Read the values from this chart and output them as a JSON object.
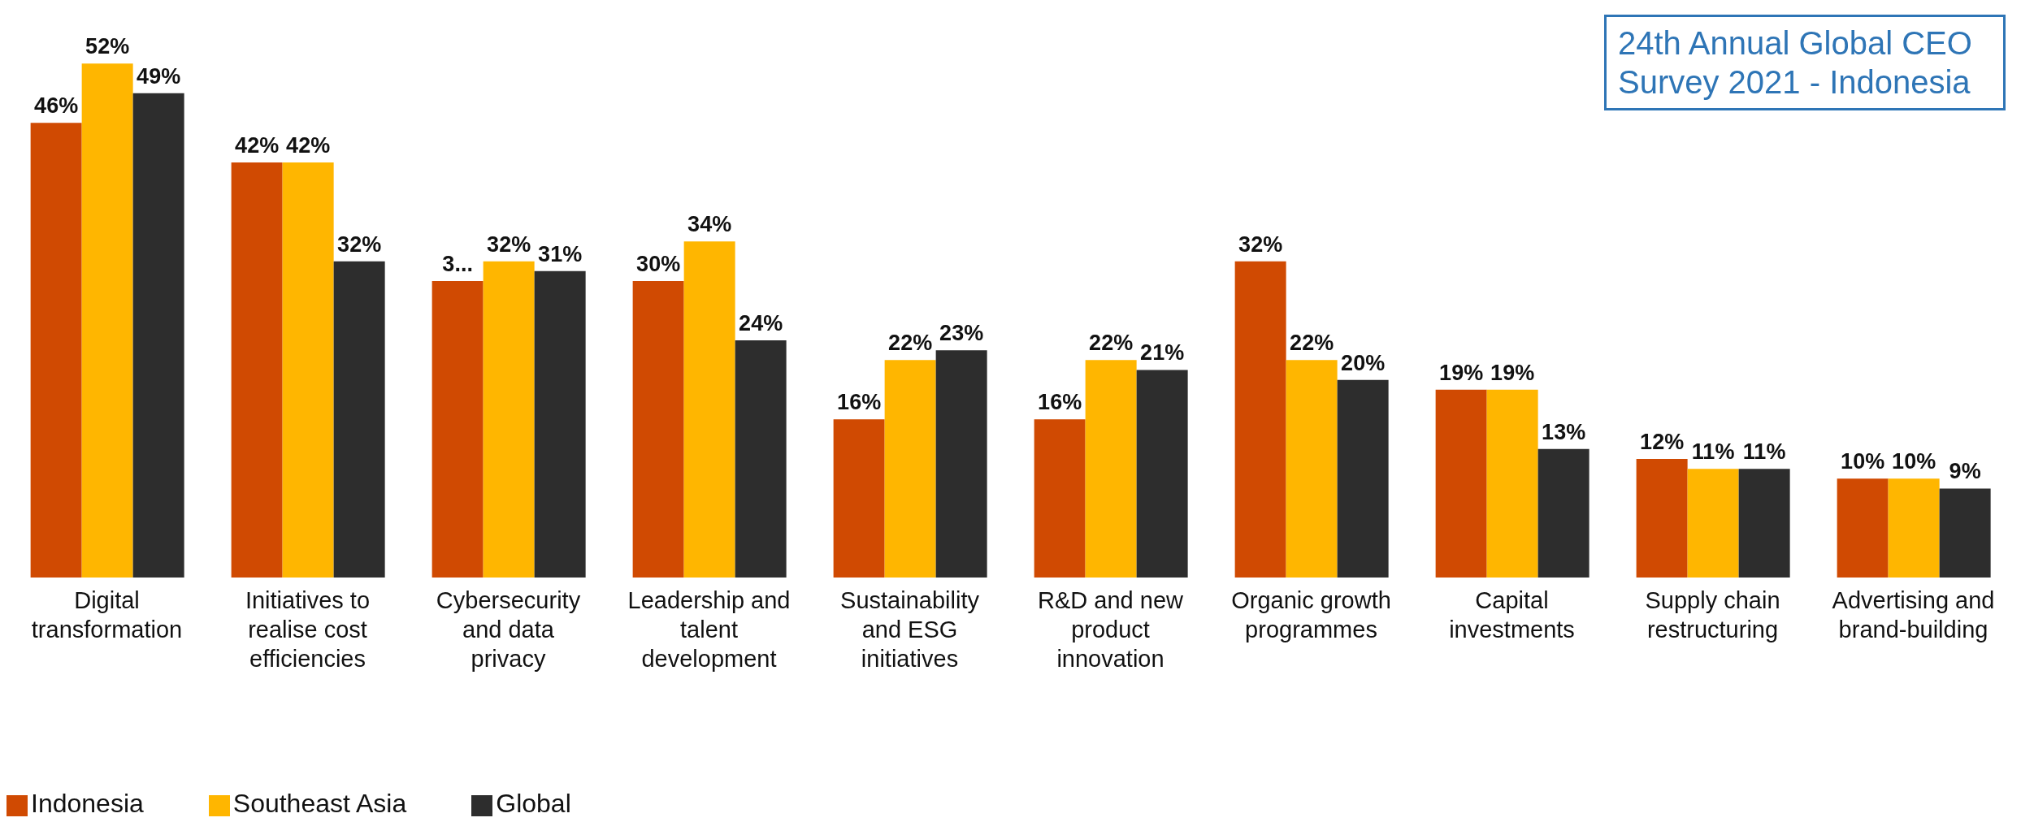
{
  "chart_data": {
    "type": "bar",
    "annotations": [
      "24th Annual Global CEO Survey 2021 - Indonesia"
    ],
    "categories": [
      "Digital transformation",
      "Initiatives to realise cost efficiencies",
      "Cybersecurity and data privacy",
      "Leadership and talent development",
      "Sustainability and ESG initiatives",
      "R&D and new product innovation",
      "Organic growth programmes",
      "Capital investments",
      "Supply chain restructuring",
      "Advertising and brand-building"
    ],
    "series": [
      {
        "name": "Indonesia",
        "color": "#d04a02",
        "values": [
          46,
          42,
          30,
          30,
          16,
          16,
          32,
          19,
          12,
          10
        ],
        "value_labels": [
          "46%",
          "42%",
          "3...",
          "30%",
          "16%",
          "16%",
          "32%",
          "19%",
          "12%",
          "10%"
        ]
      },
      {
        "name": "Southeast Asia",
        "color": "#ffb600",
        "values": [
          52,
          42,
          32,
          34,
          22,
          22,
          22,
          19,
          11,
          10
        ],
        "value_labels": [
          "52%",
          "42%",
          "32%",
          "34%",
          "22%",
          "22%",
          "22%",
          "19%",
          "11%",
          "10%"
        ]
      },
      {
        "name": "Global",
        "color": "#2d2d2d",
        "values": [
          49,
          32,
          31,
          24,
          23,
          21,
          20,
          13,
          11,
          9
        ],
        "value_labels": [
          "49%",
          "32%",
          "31%",
          "24%",
          "23%",
          "21%",
          "20%",
          "13%",
          "11%",
          "9%"
        ]
      }
    ],
    "legend": "bottom left",
    "grid": false
  }
}
